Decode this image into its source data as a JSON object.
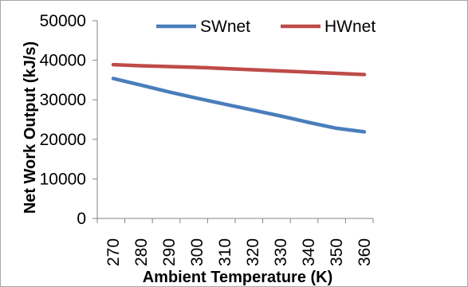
{
  "chart_data": {
    "type": "line",
    "x": [
      270,
      280,
      290,
      300,
      310,
      320,
      330,
      340,
      350,
      360
    ],
    "series": [
      {
        "name": "SWnet",
        "color": "#4a7ebb",
        "values": [
          35400,
          33700,
          32000,
          30400,
          28900,
          27400,
          25900,
          24300,
          22800,
          21900
        ]
      },
      {
        "name": "HWnet",
        "color": "#be4b48",
        "values": [
          38900,
          38600,
          38400,
          38200,
          37900,
          37600,
          37300,
          37000,
          36700,
          36400
        ]
      }
    ],
    "yticks": [
      "0",
      "10000",
      "20000",
      "30000",
      "40000",
      "50000"
    ],
    "xticks": [
      "270",
      "280",
      "290",
      "300",
      "310",
      "320",
      "330",
      "340",
      "350",
      "360"
    ],
    "xlabel": "Ambient Temperature (K)",
    "ylabel": "Net Work Output (kJ/s)",
    "ylim": [
      0,
      50000
    ],
    "grid": false,
    "legend": "top-center"
  }
}
